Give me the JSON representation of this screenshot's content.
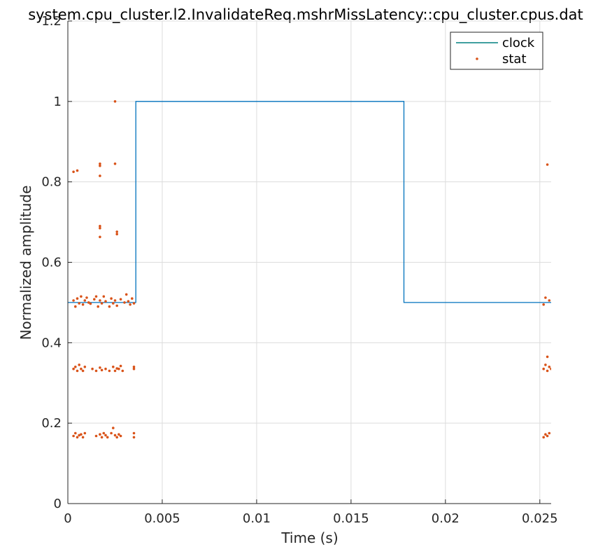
{
  "chart_data": {
    "type": "line",
    "title": "system.cpu_cluster.l2.InvalidateReq.mshrMissLatency::cpu_cluster.cpus.dat",
    "xlabel": "Time (s)",
    "ylabel": "Normalized amplitude",
    "xlim": [
      0,
      0.0256
    ],
    "ylim": [
      0,
      1.2
    ],
    "xticks": [
      0,
      0.005,
      0.01,
      0.015,
      0.02,
      0.025
    ],
    "xtick_labels": [
      "0",
      "0.005",
      "0.01",
      "0.015",
      "0.02",
      "0.025"
    ],
    "yticks": [
      0,
      0.2,
      0.4,
      0.6,
      0.8,
      1,
      1.2
    ],
    "ytick_labels": [
      "0",
      "0.2",
      "0.4",
      "0.6",
      "0.8",
      "1",
      "1.2"
    ],
    "grid": true,
    "legend_position": "top-right",
    "series": [
      {
        "name": "clock",
        "kind": "line",
        "color": "#0072BD",
        "legend_color": "#008080",
        "x": [
          0,
          0.0036,
          0.0036,
          0.0178,
          0.0178,
          0.0256
        ],
        "y": [
          0.5,
          0.5,
          1.0,
          1.0,
          0.5,
          0.5
        ]
      },
      {
        "name": "stat",
        "kind": "scatter",
        "color": "#D95319",
        "points": [
          [
            0.0003,
            0.825
          ],
          [
            0.0005,
            0.828
          ],
          [
            0.0017,
            0.845
          ],
          [
            0.0017,
            0.84
          ],
          [
            0.0017,
            0.815
          ],
          [
            0.0025,
            0.845
          ],
          [
            0.0025,
            1.0
          ],
          [
            0.0017,
            0.69
          ],
          [
            0.0017,
            0.685
          ],
          [
            0.0017,
            0.663
          ],
          [
            0.0026,
            0.676
          ],
          [
            0.0026,
            0.67
          ],
          [
            0.0254,
            0.843
          ],
          [
            0.0003,
            0.505
          ],
          [
            0.0004,
            0.49
          ],
          [
            0.0005,
            0.51
          ],
          [
            0.0006,
            0.498
          ],
          [
            0.0007,
            0.515
          ],
          [
            0.0008,
            0.495
          ],
          [
            0.0009,
            0.505
          ],
          [
            0.001,
            0.512
          ],
          [
            0.0011,
            0.5
          ],
          [
            0.0012,
            0.497
          ],
          [
            0.0014,
            0.508
          ],
          [
            0.0015,
            0.515
          ],
          [
            0.0016,
            0.49
          ],
          [
            0.0017,
            0.505
          ],
          [
            0.0018,
            0.498
          ],
          [
            0.0019,
            0.515
          ],
          [
            0.002,
            0.503
          ],
          [
            0.0022,
            0.49
          ],
          [
            0.0023,
            0.51
          ],
          [
            0.0024,
            0.498
          ],
          [
            0.0025,
            0.505
          ],
          [
            0.0026,
            0.492
          ],
          [
            0.0028,
            0.508
          ],
          [
            0.003,
            0.5
          ],
          [
            0.0031,
            0.52
          ],
          [
            0.0032,
            0.503
          ],
          [
            0.0033,
            0.495
          ],
          [
            0.0034,
            0.51
          ],
          [
            0.0035,
            0.498
          ],
          [
            0.0252,
            0.495
          ],
          [
            0.0253,
            0.512
          ],
          [
            0.0255,
            0.505
          ],
          [
            0.0003,
            0.335
          ],
          [
            0.0004,
            0.34
          ],
          [
            0.0005,
            0.33
          ],
          [
            0.0006,
            0.345
          ],
          [
            0.0007,
            0.335
          ],
          [
            0.0008,
            0.33
          ],
          [
            0.0009,
            0.34
          ],
          [
            0.0013,
            0.335
          ],
          [
            0.0015,
            0.33
          ],
          [
            0.0017,
            0.338
          ],
          [
            0.0018,
            0.332
          ],
          [
            0.002,
            0.335
          ],
          [
            0.0022,
            0.33
          ],
          [
            0.0024,
            0.34
          ],
          [
            0.0025,
            0.33
          ],
          [
            0.0026,
            0.336
          ],
          [
            0.0027,
            0.335
          ],
          [
            0.0028,
            0.342
          ],
          [
            0.0029,
            0.33
          ],
          [
            0.0035,
            0.34
          ],
          [
            0.0035,
            0.335
          ],
          [
            0.0252,
            0.335
          ],
          [
            0.0253,
            0.345
          ],
          [
            0.0254,
            0.33
          ],
          [
            0.0254,
            0.365
          ],
          [
            0.0255,
            0.34
          ],
          [
            0.0256,
            0.335
          ],
          [
            0.0003,
            0.168
          ],
          [
            0.0004,
            0.175
          ],
          [
            0.0005,
            0.165
          ],
          [
            0.0006,
            0.17
          ],
          [
            0.0007,
            0.172
          ],
          [
            0.0008,
            0.165
          ],
          [
            0.0009,
            0.175
          ],
          [
            0.0015,
            0.168
          ],
          [
            0.0017,
            0.172
          ],
          [
            0.0018,
            0.165
          ],
          [
            0.0019,
            0.175
          ],
          [
            0.002,
            0.17
          ],
          [
            0.0021,
            0.165
          ],
          [
            0.0023,
            0.175
          ],
          [
            0.0024,
            0.188
          ],
          [
            0.0025,
            0.17
          ],
          [
            0.0026,
            0.165
          ],
          [
            0.0027,
            0.172
          ],
          [
            0.0028,
            0.168
          ],
          [
            0.0035,
            0.165
          ],
          [
            0.0035,
            0.175
          ],
          [
            0.0252,
            0.165
          ],
          [
            0.0253,
            0.172
          ],
          [
            0.0254,
            0.168
          ],
          [
            0.0255,
            0.175
          ]
        ]
      }
    ]
  }
}
